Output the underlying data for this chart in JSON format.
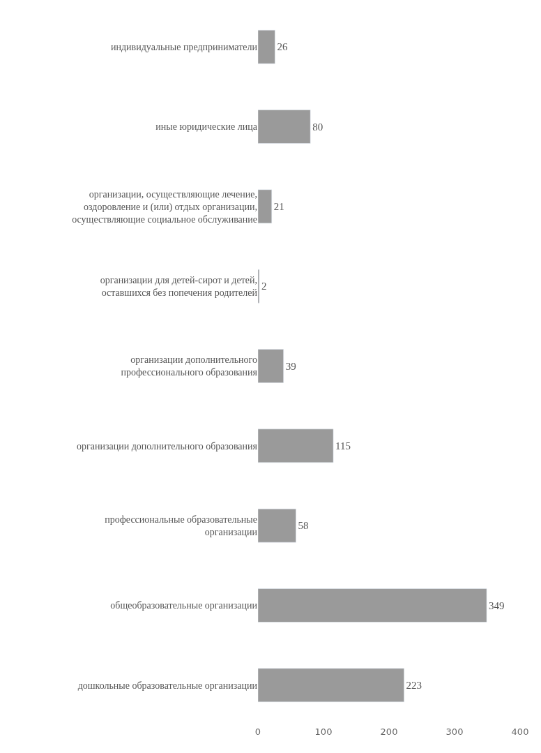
{
  "chart_data": {
    "type": "bar",
    "orientation": "horizontal",
    "categories": [
      "индивидуальные предприниматели",
      "иные юридические лица",
      "организации, осуществляющие лечение, оздоровление и (или) отдых организации, осуществляющие социальное обслуживание",
      "организации для детей-сирот и детей, оставшихся без попечения родителей",
      "организации дополнительного профессионального образования",
      "организации дополнительного образования",
      "профессиональные образовательные организации",
      "общеобразовательные организации",
      "дошкольные образовательные организации"
    ],
    "values": [
      26,
      80,
      21,
      2,
      39,
      115,
      58,
      349,
      223
    ],
    "color": "#9a9a9a",
    "xlim": [
      0,
      400
    ],
    "xticks": [
      0,
      100,
      200,
      300,
      400
    ],
    "data_labels": true,
    "legend": false
  }
}
